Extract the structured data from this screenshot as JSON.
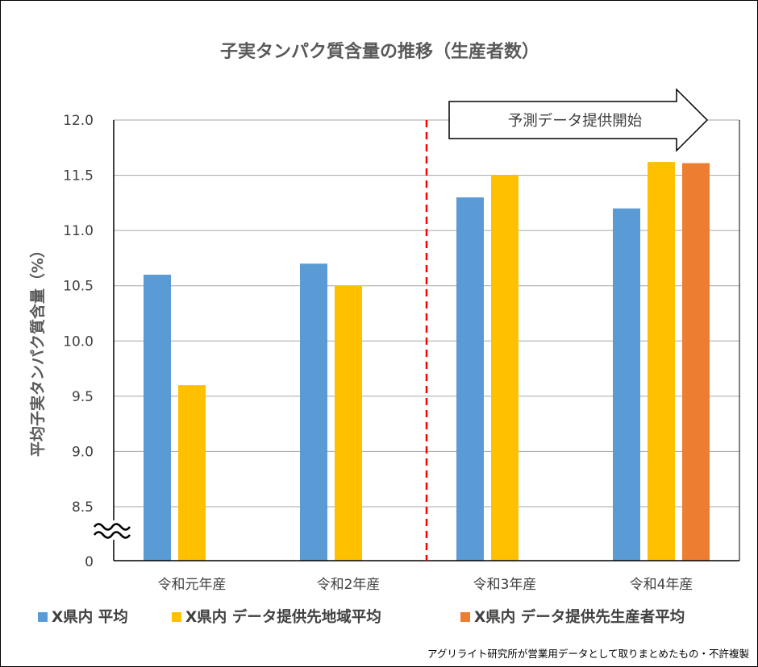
{
  "chart_data": {
    "type": "bar",
    "title": "子実タンパク質含量の推移（生産者数）",
    "ylabel": "平均子実タンパク質含量（%）",
    "xlabel": "",
    "ylim": [
      8.0,
      12.0
    ],
    "axis_break": true,
    "axis_break_label": "0",
    "y_ticks": [
      8.5,
      9.0,
      9.5,
      10.0,
      10.5,
      11.0,
      11.5,
      12.0
    ],
    "y_tick_labels": [
      "8.5",
      "9.0",
      "9.5",
      "10.0",
      "10.5",
      "11.0",
      "11.5",
      "12.0"
    ],
    "grid": true,
    "legend_position": "bottom",
    "categories": [
      "令和元年産",
      "令和2年産",
      "令和3年産",
      "令和4年産"
    ],
    "series": [
      {
        "name": "X県内 平均",
        "color": "#5B9BD5",
        "values": [
          10.6,
          10.7,
          11.3,
          11.2
        ]
      },
      {
        "name": "X県内 データ提供先地域平均",
        "color": "#FFC000",
        "values": [
          9.6,
          10.5,
          11.5,
          11.62
        ]
      },
      {
        "name": "X県内 データ提供先生産者平均",
        "color": "#ED7D31",
        "values": [
          null,
          null,
          null,
          11.61
        ]
      }
    ],
    "annotations": {
      "forecast_label": "予測データ提供開始",
      "forecast_start_after_category": 1,
      "divider_color": "#FF0000"
    },
    "credit": "アグリライト研究所が営業用データとして取りまとめたもの・不許複製"
  }
}
